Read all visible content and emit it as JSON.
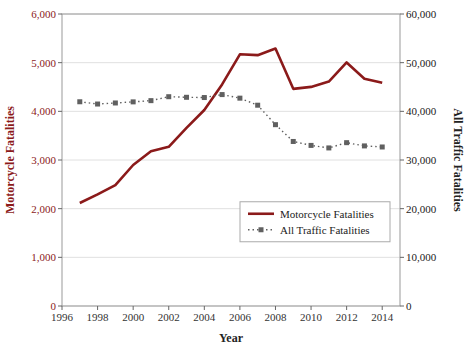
{
  "chart_data": {
    "type": "line",
    "x_label": "Year",
    "y_label": "Motorcycle Fatalities",
    "y2_label": "All Traffic Fatalities",
    "x": [
      1997,
      1998,
      1999,
      2000,
      2001,
      2002,
      2003,
      2004,
      2005,
      2006,
      2007,
      2008,
      2009,
      2010,
      2011,
      2012,
      2013,
      2014
    ],
    "series": [
      {
        "name": "Motorcycle Fatalities",
        "color": "#8B1A1A",
        "line_style": "solid",
        "marker": "none",
        "values": [
          2116,
          2294,
          2483,
          2897,
          3181,
          3270,
          3661,
          4028,
          4553,
          5172,
          5154,
          5290,
          4462,
          4502,
          4612,
          5004,
          4668,
          4586
        ]
      },
      {
        "name": "All Traffic Fatalities",
        "color": "#606060",
        "line_style": "dotted",
        "marker": "square",
        "axis": "y2",
        "values": [
          41967,
          41501,
          41717,
          41945,
          42196,
          43005,
          42884,
          42836,
          43443,
          42708,
          41259,
          37261,
          33808,
          32999,
          32479,
          33561,
          32894,
          32675
        ]
      }
    ],
    "xlim": [
      1996,
      2015
    ],
    "xticks": [
      1996,
      1998,
      2000,
      2002,
      2004,
      2006,
      2008,
      2010,
      2012,
      2014
    ],
    "ylim": [
      0,
      6000
    ],
    "yticks": [
      0,
      {
        "value": 1000,
        "label": "1,000"
      },
      {
        "value": 2000,
        "label": "2,000"
      },
      {
        "value": 3000,
        "label": "3,000"
      },
      {
        "value": 4000,
        "label": "4,000"
      },
      {
        "value": 5000,
        "label": "5,000"
      },
      {
        "value": 6000,
        "label": "6,000"
      }
    ],
    "y2lim": [
      0,
      60000
    ],
    "y2ticks": [
      0,
      {
        "value": 10000,
        "label": "10,000"
      },
      {
        "value": 20000,
        "label": "20,000"
      },
      {
        "value": 30000,
        "label": "30,000"
      },
      {
        "value": 40000,
        "label": "40,000"
      },
      {
        "value": 50000,
        "label": "50,000"
      },
      {
        "value": 60000,
        "label": "60,000"
      }
    ],
    "grid": true,
    "legend": "lower right"
  }
}
